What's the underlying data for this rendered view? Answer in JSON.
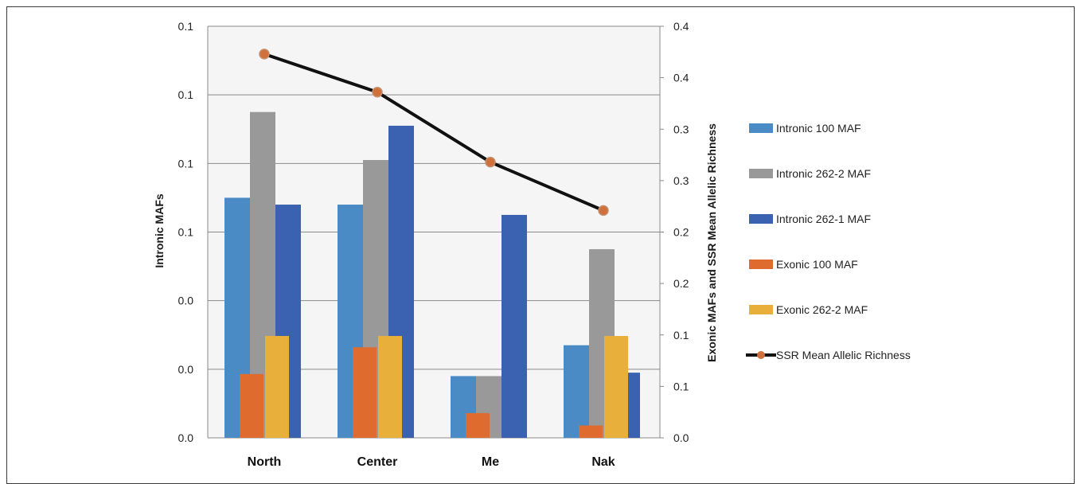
{
  "chart_data": {
    "type": "bar",
    "categories": [
      "North",
      "Center",
      "Me",
      "Nak"
    ],
    "left_axis": {
      "label": "Intronic MAFs",
      "tick_labels": [
        "0.0",
        "0.0",
        "0.0",
        "0.1",
        "0.1",
        "0.1",
        "0.1"
      ],
      "ylim": [
        0,
        0.12
      ]
    },
    "right_axis": {
      "label": "Exonic MAFs and SSR Mean Allelic Richness",
      "tick_labels": [
        "0.0",
        "0.1",
        "0.1",
        "0.2",
        "0.2",
        "0.3",
        "0.3",
        "0.4",
        "0.4"
      ],
      "ylim": [
        0,
        0.4
      ]
    },
    "series": [
      {
        "name": "Intronic 100 MAF",
        "axis": "left",
        "color": "#4a8bc6",
        "values": [
          0.07,
          0.068,
          0.018,
          0.027
        ]
      },
      {
        "name": "Intronic 262-2 MAF",
        "axis": "left",
        "color": "#999999",
        "values": [
          0.095,
          0.081,
          0.018,
          0.055
        ]
      },
      {
        "name": "Intronic 262-1 MAF",
        "axis": "left",
        "color": "#3a62b0",
        "values": [
          0.068,
          0.091,
          0.065,
          0.019
        ]
      },
      {
        "name": "Exonic 100 MAF",
        "axis": "right",
        "color": "#e06b2e",
        "values": [
          0.062,
          0.088,
          0.024,
          0.012
        ]
      },
      {
        "name": "Exonic 262-2 MAF",
        "axis": "right",
        "color": "#e8b03a",
        "values": [
          0.099,
          0.099,
          null,
          0.099
        ]
      },
      {
        "name": "SSR Mean Allelic Richness",
        "axis": "right",
        "type": "line",
        "color": "#111111",
        "marker_color": "#d0703a",
        "values": [
          0.373,
          0.336,
          0.268,
          0.221
        ]
      }
    ],
    "grid": true,
    "legend_position": "right"
  }
}
